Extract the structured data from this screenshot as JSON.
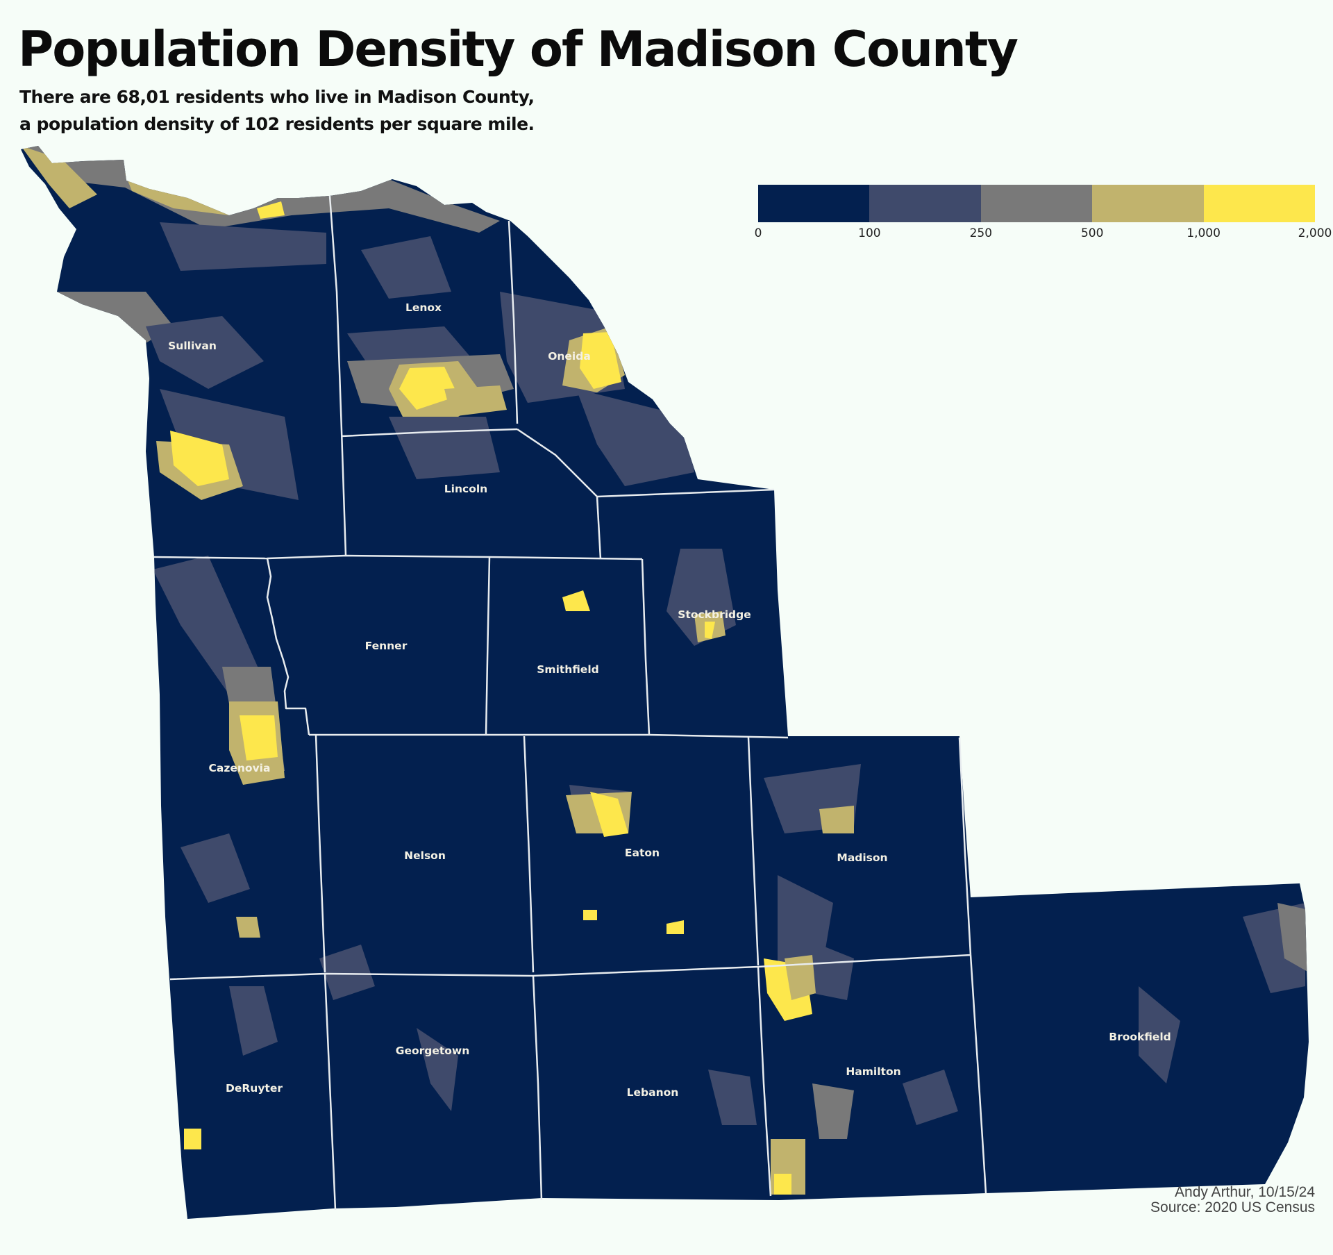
{
  "title": "Population Density of Madison County",
  "subtitle": {
    "line1": "There are 68,01 residents who live in Madison County,",
    "line2": "a population density of 102 residents per square mile."
  },
  "legend": {
    "breaks": [
      "0",
      "100",
      "250",
      "500",
      "1,000",
      "2,000"
    ],
    "colors": [
      "#03204f",
      "#3f4a6b",
      "#797979",
      "#c1b36d",
      "#fde74c"
    ]
  },
  "base_color": "#03204f",
  "boundary_color": "#e8ecef",
  "towns": [
    {
      "name": "Sullivan"
    },
    {
      "name": "Lenox"
    },
    {
      "name": "Oneida"
    },
    {
      "name": "Lincoln"
    },
    {
      "name": "Fenner"
    },
    {
      "name": "Smithfield"
    },
    {
      "name": "Stockbridge"
    },
    {
      "name": "Cazenovia"
    },
    {
      "name": "Nelson"
    },
    {
      "name": "Eaton"
    },
    {
      "name": "Madison"
    },
    {
      "name": "DeRuyter"
    },
    {
      "name": "Georgetown"
    },
    {
      "name": "Lebanon"
    },
    {
      "name": "Hamilton"
    },
    {
      "name": "Brookfield"
    }
  ],
  "credit": {
    "author": "Andy Arthur, 10/15/24",
    "source": "Source: 2020 US Census"
  }
}
